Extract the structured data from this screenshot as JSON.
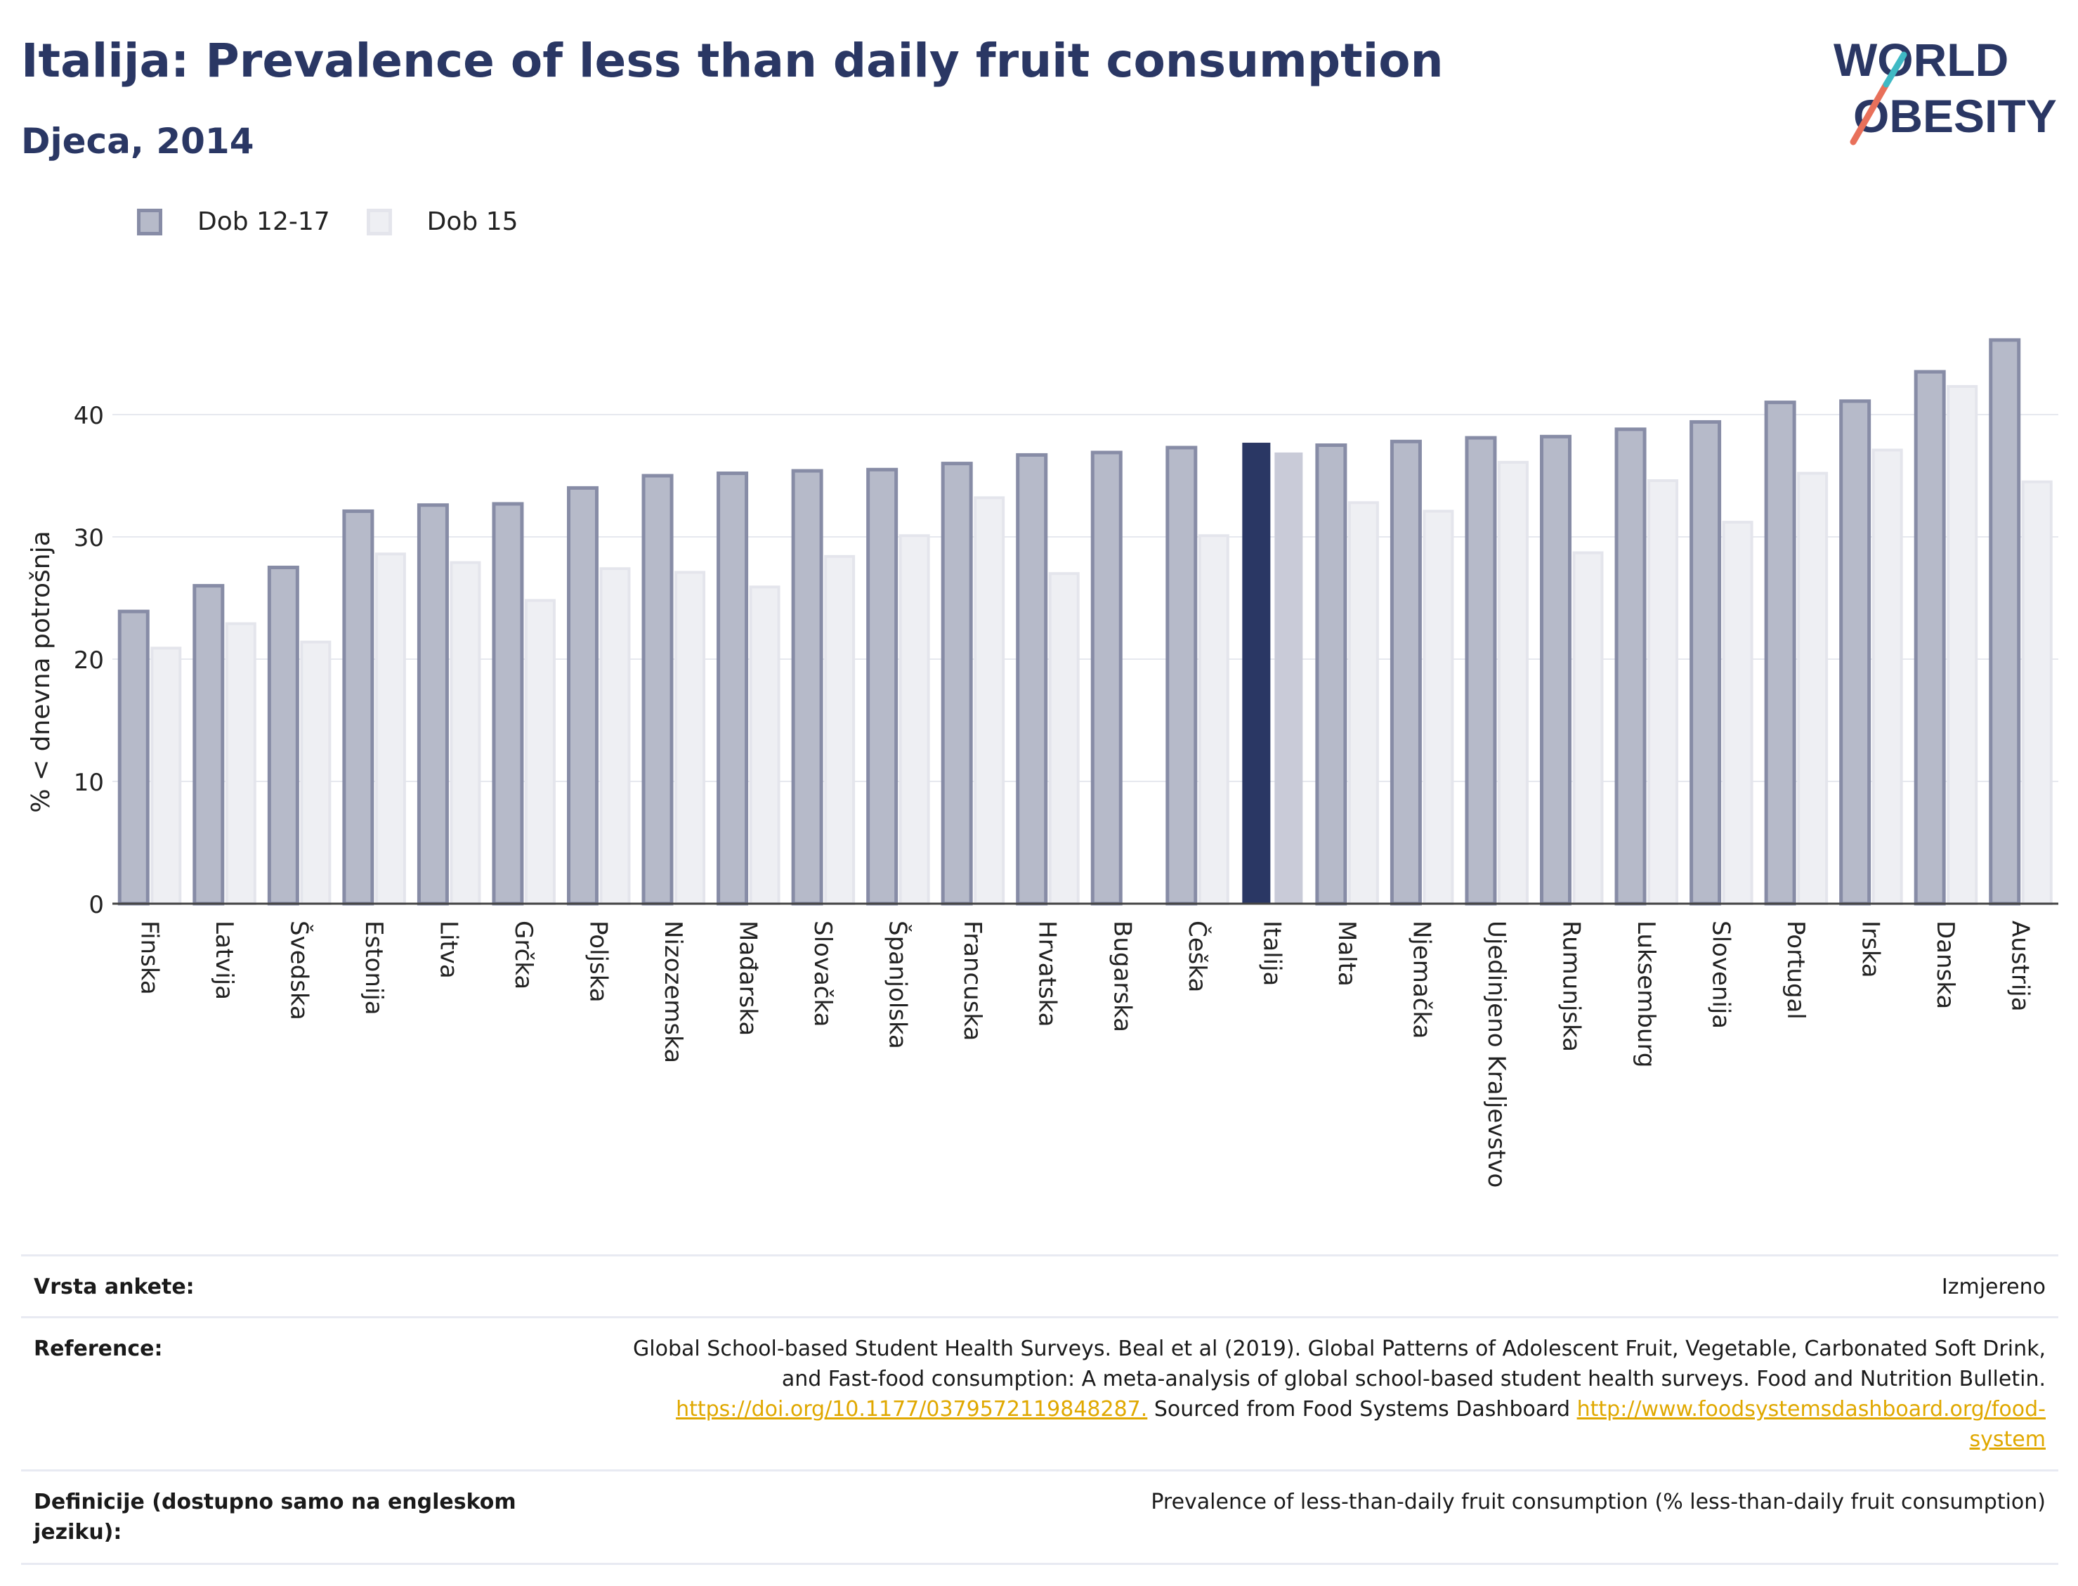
{
  "header": {
    "title": "Italija: Prevalence of less than daily fruit consumption",
    "subtitle": "Djeca, 2014"
  },
  "logo": {
    "line1": "WORLD",
    "line2": "OBESITY"
  },
  "legend": {
    "series1": "Dob 12-17",
    "series2": "Dob 15"
  },
  "colors": {
    "series1_fill": "#b6bac9",
    "series1_border": "#878ca6",
    "series2_fill": "#eeeff3",
    "series2_border": "#e4e5ec",
    "highlight1": "#2a3764",
    "highlight2": "#c9cbd8",
    "title": "#2a3764",
    "link": "#e0a800"
  },
  "chart_data": {
    "type": "bar",
    "ylabel": "% < dnevna potrošnja",
    "ylim": [
      0,
      50
    ],
    "yticks": [
      0,
      10,
      20,
      30,
      40
    ],
    "grid": true,
    "legend_position": "top-left",
    "highlight_category": "Italija",
    "categories": [
      "Finska",
      "Latvija",
      "Švedska",
      "Estonija",
      "Litva",
      "Grčka",
      "Poljska",
      "Nizozemska",
      "Mađarska",
      "Slovačka",
      "Španjolska",
      "Francuska",
      "Hrvatska",
      "Bugarska",
      "Češka",
      "Italija",
      "Malta",
      "Njemačka",
      "Ujedinjeno Kraljevstvo",
      "Rumunjska",
      "Luksemburg",
      "Slovenija",
      "Portugal",
      "Irska",
      "Danska",
      "Austrija"
    ],
    "series": [
      {
        "name": "Dob 12-17",
        "values": [
          23.9,
          26.0,
          27.5,
          32.1,
          32.6,
          32.7,
          34.0,
          35.0,
          35.2,
          35.4,
          35.5,
          36.0,
          36.7,
          36.9,
          37.3,
          37.7,
          37.5,
          37.8,
          38.1,
          38.2,
          38.8,
          39.4,
          41.0,
          41.1,
          43.5,
          46.1
        ]
      },
      {
        "name": "Dob 15",
        "values": [
          20.9,
          22.9,
          21.4,
          28.6,
          27.9,
          24.8,
          27.4,
          27.1,
          25.9,
          28.4,
          30.1,
          33.2,
          27.0,
          null,
          30.1,
          36.9,
          32.8,
          32.1,
          36.1,
          28.7,
          34.6,
          31.2,
          35.2,
          37.1,
          42.3,
          34.5
        ]
      }
    ]
  },
  "meta": {
    "survey_label": "Vrsta ankete:",
    "survey_value": "Izmjereno",
    "ref_label": "Reference:",
    "ref_line1": "Global School-based Student Health Surveys. Beal et al (2019). Global Patterns of Adolescent Fruit, Vegetable, Carbonated Soft Drink,",
    "ref_line2": "and Fast-food consumption: A meta-analysis of global school-based student health surveys. Food and Nutrition Bulletin.",
    "ref_link1": "https://doi.org/10.1177/0379572119848287.",
    "ref_mid": " Sourced from Food Systems Dashboard ",
    "ref_link2a": "http://www.foodsystemsdashboard.org/food-",
    "ref_link2b": "system",
    "def_label": "Definicije (dostupno samo na engleskom jeziku):",
    "def_value": "Prevalence of less-than-daily fruit consumption (% less-than-daily fruit consumption)"
  }
}
